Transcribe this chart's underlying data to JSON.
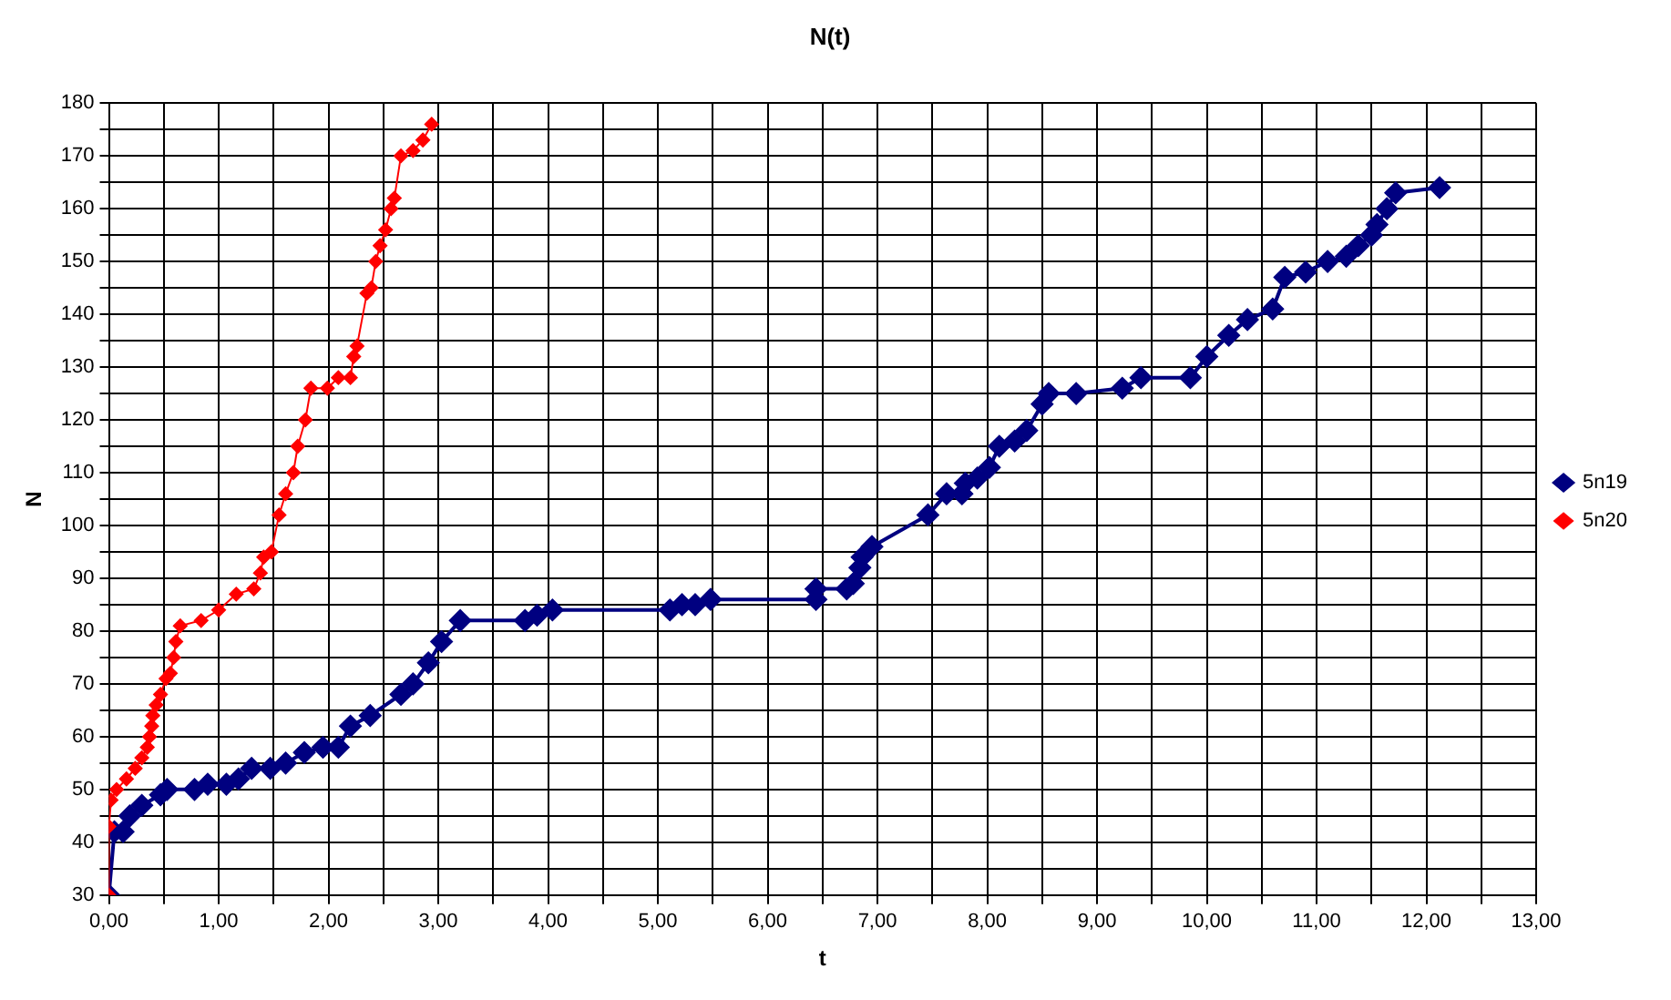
{
  "chart_data": {
    "type": "line",
    "title": "N(t)",
    "xlabel": "t",
    "ylabel": "N",
    "legend": "right",
    "grid": true,
    "marker": "diamond",
    "line_style": "solid",
    "xlim": [
      0,
      13
    ],
    "ylim": [
      30,
      180
    ],
    "xticks": [
      {
        "value": 0,
        "label": "0,00"
      },
      {
        "value": 0.5,
        "label": null
      },
      {
        "value": 1,
        "label": "1,00"
      },
      {
        "value": 1.5,
        "label": null
      },
      {
        "value": 2,
        "label": "2,00"
      },
      {
        "value": 2.5,
        "label": null
      },
      {
        "value": 3,
        "label": "3,00"
      },
      {
        "value": 3.5,
        "label": null
      },
      {
        "value": 4,
        "label": "4,00"
      },
      {
        "value": 4.5,
        "label": null
      },
      {
        "value": 5,
        "label": "5,00"
      },
      {
        "value": 5.5,
        "label": null
      },
      {
        "value": 6,
        "label": "6,00"
      },
      {
        "value": 6.5,
        "label": null
      },
      {
        "value": 7,
        "label": "7,00"
      },
      {
        "value": 7.5,
        "label": null
      },
      {
        "value": 8,
        "label": "8,00"
      },
      {
        "value": 8.5,
        "label": null
      },
      {
        "value": 9,
        "label": "9,00"
      },
      {
        "value": 9.5,
        "label": null
      },
      {
        "value": 10,
        "label": "10,00"
      },
      {
        "value": 10.5,
        "label": null
      },
      {
        "value": 11,
        "label": "11,00"
      },
      {
        "value": 11.5,
        "label": null
      },
      {
        "value": 12,
        "label": "12,00"
      },
      {
        "value": 12.5,
        "label": null
      },
      {
        "value": 13,
        "label": "13,00"
      }
    ],
    "yticks": [
      30,
      {
        "value": 35,
        "label": null
      },
      40,
      {
        "value": 45,
        "label": null
      },
      50,
      {
        "value": 55,
        "label": null
      },
      60,
      {
        "value": 65,
        "label": null
      },
      70,
      {
        "value": 75,
        "label": null
      },
      80,
      {
        "value": 85,
        "label": null
      },
      90,
      {
        "value": 95,
        "label": null
      },
      100,
      {
        "value": 105,
        "label": null
      },
      110,
      {
        "value": 115,
        "label": null
      },
      120,
      {
        "value": 125,
        "label": null
      },
      130,
      {
        "value": 135,
        "label": null
      },
      140,
      {
        "value": 145,
        "label": null
      },
      150,
      {
        "value": 155,
        "label": null
      },
      160,
      {
        "value": 165,
        "label": null
      },
      170,
      {
        "value": 175,
        "label": null
      },
      180
    ],
    "series": [
      {
        "name": "5n19",
        "color": "#000080",
        "x": [
          0,
          0.05,
          0.13,
          0.19,
          0.3,
          0.47,
          0.53,
          0.78,
          0.9,
          1.07,
          1.18,
          1.3,
          1.47,
          1.61,
          1.78,
          1.95,
          2.09,
          2.2,
          2.38,
          2.66,
          2.77,
          2.91,
          3.03,
          3.2,
          3.79,
          3.9,
          4.04,
          5.11,
          5.22,
          5.34,
          5.48,
          6.44,
          6.44,
          6.72,
          6.78,
          6.84,
          6.86,
          6.95,
          7.46,
          7.63,
          7.77,
          7.8,
          7.91,
          8.02,
          8.11,
          8.25,
          8.36,
          8.5,
          8.56,
          8.81,
          9.23,
          9.4,
          9.85,
          10.0,
          10.2,
          10.37,
          10.6,
          10.71,
          10.9,
          11.1,
          11.27,
          11.38,
          11.5,
          11.55,
          11.64,
          11.72,
          12.12
        ],
        "values": [
          30,
          42,
          42,
          45,
          47,
          49,
          50,
          50,
          51,
          51,
          52,
          54,
          54,
          55,
          57,
          58,
          58,
          62,
          64,
          68,
          70,
          74,
          78,
          82,
          82,
          83,
          84,
          84,
          85,
          85,
          86,
          86,
          88,
          88,
          89,
          92,
          94,
          96,
          102,
          106,
          106,
          108,
          109,
          111,
          115,
          116,
          118,
          123,
          125,
          125,
          126,
          128,
          128,
          132,
          136,
          139,
          141,
          147,
          148,
          150,
          151,
          153,
          155,
          157,
          160,
          163,
          164
        ]
      },
      {
        "name": "5n20",
        "color": "#ff0000",
        "x": [
          0,
          0,
          0.02,
          0.07,
          0.16,
          0.24,
          0.3,
          0.35,
          0.37,
          0.39,
          0.4,
          0.43,
          0.47,
          0.52,
          0.56,
          0.59,
          0.61,
          0.65,
          0.84,
          1.0,
          1.16,
          1.32,
          1.38,
          1.41,
          1.48,
          1.55,
          1.61,
          1.68,
          1.72,
          1.79,
          1.84,
          1.99,
          2.09,
          2.2,
          2.23,
          2.26,
          2.35,
          2.39,
          2.43,
          2.47,
          2.52,
          2.57,
          2.6,
          2.66,
          2.77,
          2.86,
          2.94
        ],
        "values": [
          30,
          43,
          48,
          50,
          52,
          54,
          56,
          58,
          60,
          62,
          64,
          66,
          68,
          71,
          72,
          75,
          78,
          81,
          82,
          84,
          87,
          88,
          91,
          94,
          95,
          102,
          106,
          110,
          115,
          120,
          126,
          126,
          128,
          128,
          132,
          134,
          144,
          145,
          150,
          153,
          156,
          160,
          162,
          170,
          171,
          173,
          176
        ]
      }
    ]
  }
}
